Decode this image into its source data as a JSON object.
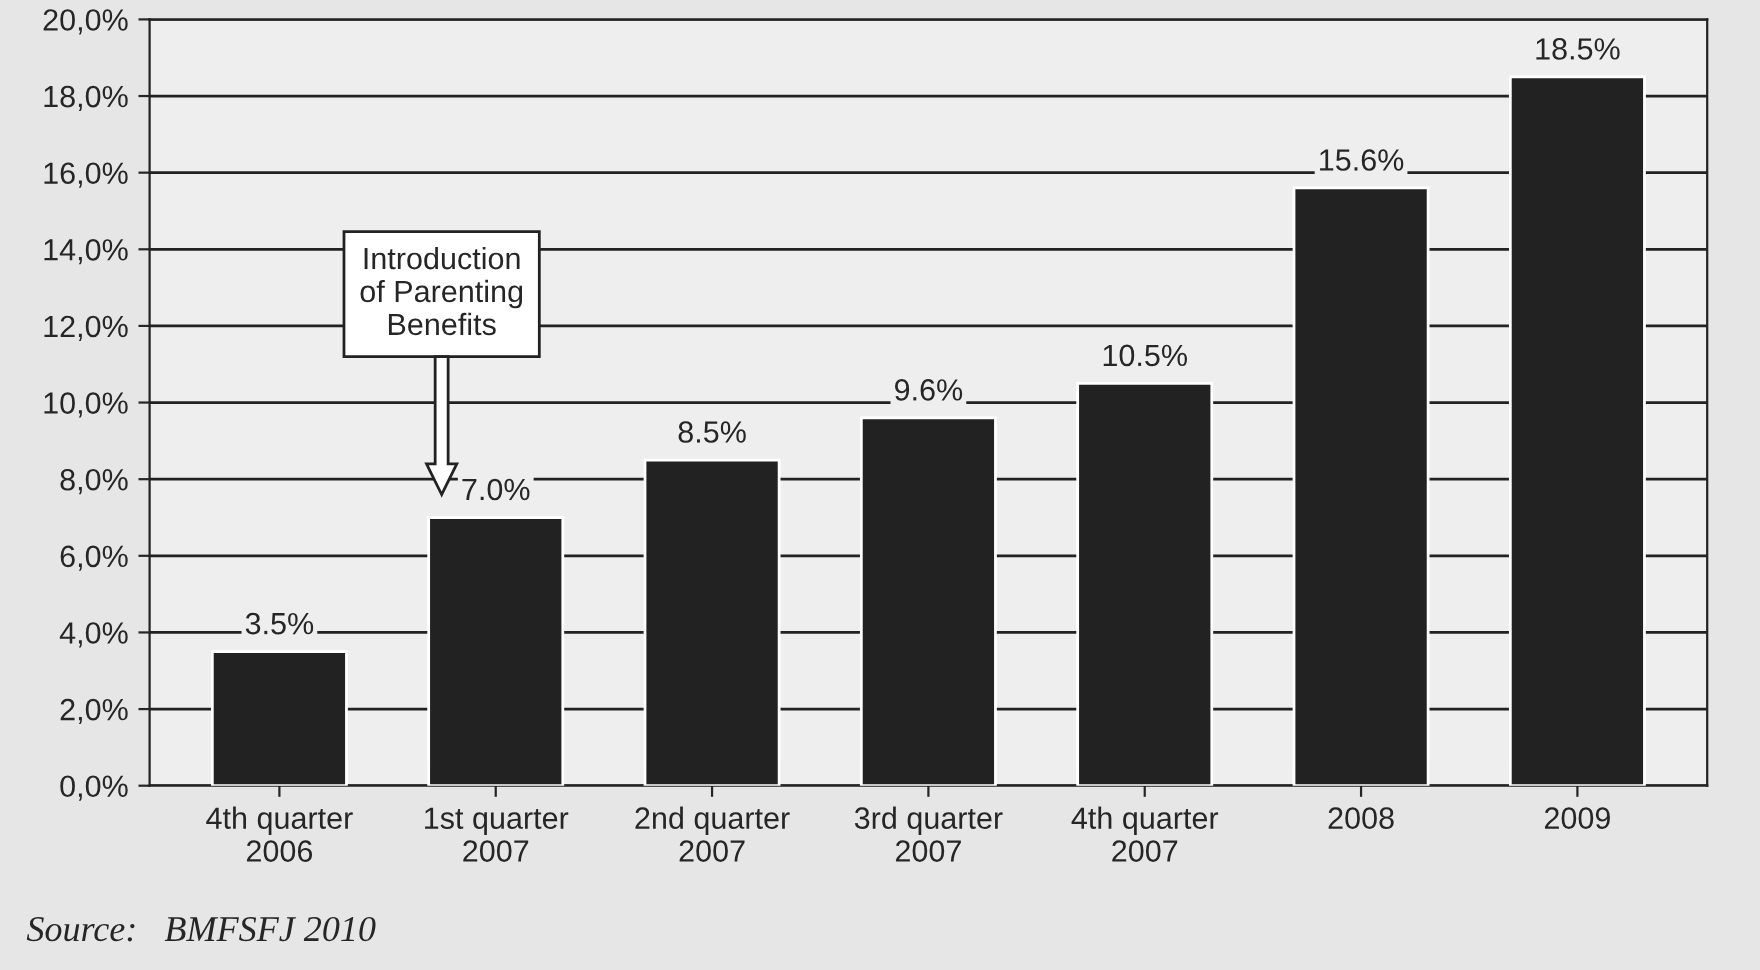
{
  "chart_data": {
    "type": "bar",
    "categories": [
      "4th quarter\n2006",
      "1st quarter\n2007",
      "2nd quarter\n2007",
      "3rd quarter\n2007",
      "4th quarter\n2007",
      "2008",
      "2009"
    ],
    "values": [
      3.5,
      7.0,
      8.5,
      9.6,
      10.5,
      15.6,
      18.5
    ],
    "value_labels": [
      "3.5%",
      "7.0%",
      "8.5%",
      "9.6%",
      "10.5%",
      "15.6%",
      "18.5%"
    ],
    "color": "#222222",
    "ylim": [
      0,
      20
    ],
    "yticks": [
      {
        "value": 0,
        "label": "0,0%"
      },
      {
        "value": 2,
        "label": "2,0%"
      },
      {
        "value": 4,
        "label": "4,0%"
      },
      {
        "value": 6,
        "label": "6,0%"
      },
      {
        "value": 8,
        "label": "8,0%"
      },
      {
        "value": 10,
        "label": "10,0%"
      },
      {
        "value": 12,
        "label": "12,0%"
      },
      {
        "value": 14,
        "label": "14,0%"
      },
      {
        "value": 16,
        "label": "16,0%"
      },
      {
        "value": 18,
        "label": "18,0%"
      },
      {
        "value": 20,
        "label": "20,0%"
      }
    ],
    "grid": "y",
    "annotations": [
      "Introduction\nof Parenting\nBenefits",
      "Source:   BMFSFJ 2010"
    ]
  }
}
